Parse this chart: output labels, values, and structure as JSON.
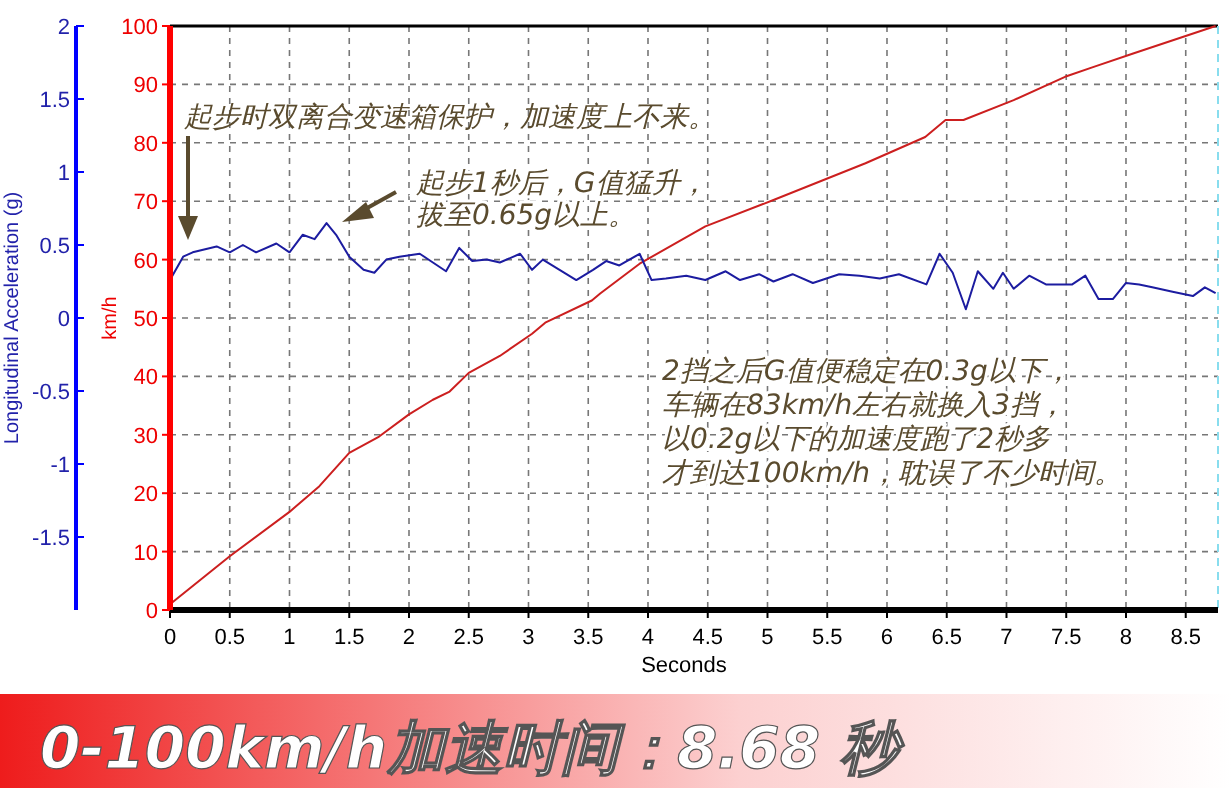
{
  "chart_data": {
    "type": "line",
    "xlabel": "Seconds",
    "ylabel": "km/h",
    "y2label": "Longitudinal Acceleration (g)",
    "xlim": [
      0,
      8.77
    ],
    "xticks": [
      0,
      0.5,
      1,
      1.5,
      2,
      2.5,
      3,
      3.5,
      4,
      4.5,
      5,
      5.5,
      6,
      6.5,
      7,
      7.5,
      8,
      8.5
    ],
    "ylim": [
      0,
      100
    ],
    "yticks": [
      0,
      10,
      20,
      30,
      40,
      50,
      60,
      70,
      80,
      90,
      100
    ],
    "y2lim": [
      -2,
      2
    ],
    "y2ticks": [
      -1.5,
      -1,
      -0.5,
      0,
      0.5,
      1,
      1.5,
      2
    ],
    "grid": true,
    "series": [
      {
        "color": "#cc1f1f",
        "x": [
          0,
          0.5,
          1,
          1.25,
          1.5,
          1.75,
          2,
          2.2,
          2.34,
          2.5,
          2.76,
          3.03,
          3.14,
          3.53,
          3.6,
          3.93,
          4.48,
          5.05,
          5.82,
          6.32,
          6.49,
          6.64,
          7.06,
          7.49,
          7.73,
          8.06,
          8.75
        ],
        "values": [
          1,
          9.2,
          16.8,
          21.2,
          26.9,
          29.7,
          33.5,
          36,
          37.4,
          40.6,
          43.5,
          47.3,
          49.2,
          53,
          54.2,
          59.3,
          65.7,
          70.2,
          76.5,
          81,
          83.9,
          83.9,
          87.3,
          91.3,
          93,
          95.3,
          100
        ]
      },
      {
        "color": "#1c1ca0",
        "axis": "y2",
        "x": [
          0,
          0.11,
          0.19,
          0.39,
          0.5,
          0.61,
          0.72,
          0.89,
          1.0,
          1.11,
          1.21,
          1.31,
          1.39,
          1.5,
          1.62,
          1.71,
          1.81,
          1.92,
          2.09,
          2.2,
          2.31,
          2.42,
          2.53,
          2.65,
          2.76,
          2.93,
          3.03,
          3.12,
          3.26,
          3.4,
          3.54,
          3.65,
          3.76,
          3.93,
          4.03,
          4.15,
          4.32,
          4.48,
          4.65,
          4.77,
          4.93,
          5.05,
          5.21,
          5.38,
          5.6,
          5.77,
          5.94,
          6.1,
          6.33,
          6.44,
          6.55,
          6.66,
          6.76,
          6.89,
          6.97,
          7.06,
          7.19,
          7.33,
          7.55,
          7.66,
          7.77,
          7.89,
          8.0,
          8.11,
          8.22,
          8.39,
          8.56,
          8.66,
          8.75
        ],
        "values": [
          0.26,
          0.42,
          0.45,
          0.49,
          0.45,
          0.5,
          0.45,
          0.51,
          0.45,
          0.57,
          0.54,
          0.65,
          0.57,
          0.42,
          0.33,
          0.31,
          0.4,
          0.42,
          0.44,
          0.38,
          0.32,
          0.48,
          0.39,
          0.4,
          0.38,
          0.44,
          0.33,
          0.4,
          0.33,
          0.26,
          0.33,
          0.39,
          0.36,
          0.44,
          0.26,
          0.27,
          0.29,
          0.26,
          0.32,
          0.26,
          0.3,
          0.25,
          0.3,
          0.24,
          0.3,
          0.29,
          0.27,
          0.3,
          0.23,
          0.44,
          0.31,
          0.06,
          0.32,
          0.2,
          0.31,
          0.2,
          0.29,
          0.23,
          0.23,
          0.29,
          0.13,
          0.13,
          0.24,
          0.23,
          0.21,
          0.18,
          0.15,
          0.21,
          0.17
        ]
      }
    ],
    "annotations": [
      "起步时双离合变速箱保护，加速度上不来。",
      "起步1秒后，G值猛升，",
      "拔至0.65g以上。",
      "2挡之后G值便稳定在0.3g以下，",
      "车辆在83km/h左右就换入3挡，",
      "以0.2g以下的加速度跑了2秒多",
      "才到达100km/h，耽误了不少时间。",
      "0-100km/h加速时间：8.68 秒"
    ]
  }
}
